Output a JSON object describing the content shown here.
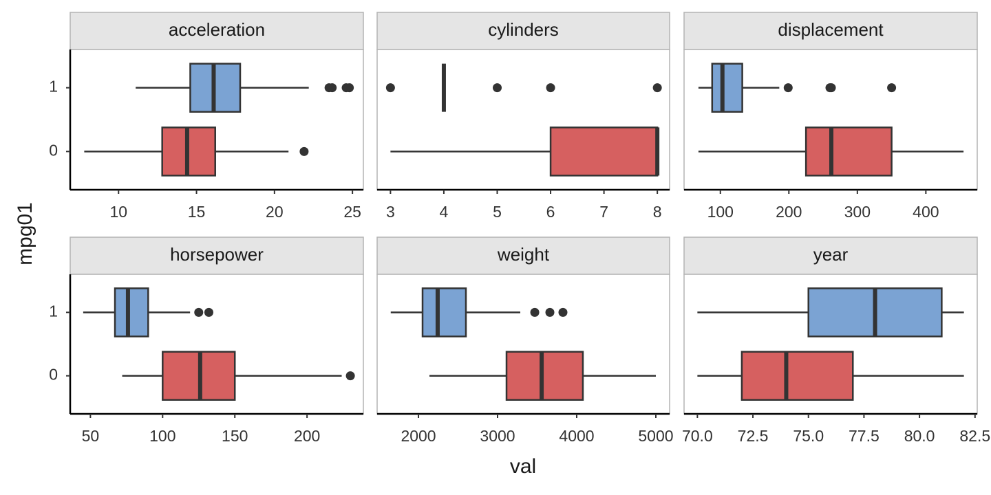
{
  "x_label": "val",
  "y_label": "mpg01",
  "categories": [
    "1",
    "0"
  ],
  "chart_data": [
    {
      "type": "box",
      "title": "acceleration",
      "xlim": [
        6.9,
        25.7
      ],
      "xticks": [
        10,
        15,
        20,
        25
      ],
      "series": [
        {
          "color": "#7ba3d3",
          "min": 11.1,
          "q1": 14.6,
          "median": 16.1,
          "q3": 17.8,
          "max": 22.2,
          "outliers": [
            23.5,
            23.7,
            24.6,
            24.8
          ]
        },
        {
          "color": "#d66060",
          "min": 7.8,
          "q1": 12.8,
          "median": 14.4,
          "q3": 16.2,
          "max": 20.9,
          "outliers": [
            21.9
          ]
        }
      ]
    },
    {
      "type": "box",
      "title": "cylinders",
      "xlim": [
        2.75,
        8.23
      ],
      "xticks": [
        3,
        4,
        5,
        6,
        7,
        8
      ],
      "series": [
        {
          "color": "#7ba3d3",
          "min": 4,
          "q1": 4,
          "median": 4,
          "q3": 4,
          "max": 4,
          "outliers": [
            3,
            5,
            6,
            8
          ]
        },
        {
          "color": "#d66060",
          "min": 3,
          "q1": 6,
          "median": 8,
          "q3": 8,
          "max": 8,
          "outliers": []
        }
      ]
    },
    {
      "type": "box",
      "title": "displacement",
      "xlim": [
        47,
        475
      ],
      "xticks": [
        100,
        200,
        300,
        400
      ],
      "series": [
        {
          "color": "#7ba3d3",
          "min": 68,
          "q1": 88,
          "median": 103,
          "q3": 132,
          "max": 186,
          "outliers": [
            199,
            260,
            262,
            350
          ]
        },
        {
          "color": "#d66060",
          "min": 68,
          "q1": 225,
          "median": 262,
          "q3": 350,
          "max": 455,
          "outliers": []
        }
      ]
    },
    {
      "type": "box",
      "title": "horsepower",
      "xlim": [
        36,
        239
      ],
      "xticks": [
        50,
        100,
        150,
        200
      ],
      "series": [
        {
          "color": "#7ba3d3",
          "min": 45,
          "q1": 67,
          "median": 76,
          "q3": 90,
          "max": 119,
          "outliers": [
            125,
            132
          ]
        },
        {
          "color": "#d66060",
          "min": 72,
          "q1": 100,
          "median": 126,
          "q3": 150,
          "max": 224,
          "outliers": [
            230
          ]
        }
      ]
    },
    {
      "type": "box",
      "title": "weight",
      "xlim": [
        1478,
        5174
      ],
      "xticks": [
        2000,
        3000,
        4000,
        5000
      ],
      "series": [
        {
          "color": "#7ba3d3",
          "min": 1650,
          "q1": 2052,
          "median": 2243,
          "q3": 2600,
          "max": 3287,
          "outliers": [
            3470,
            3661,
            3826
          ]
        },
        {
          "color": "#d66060",
          "min": 2139,
          "q1": 3113,
          "median": 3557,
          "q3": 4078,
          "max": 5000,
          "outliers": []
        }
      ]
    },
    {
      "type": "box",
      "title": "year",
      "xlim": [
        69.4,
        82.6
      ],
      "xticks": [
        {
          "value": 70,
          "label": "70.0"
        },
        72.5,
        {
          "value": 75,
          "label": "75.0"
        },
        77.5,
        {
          "value": 80,
          "label": "80.0"
        },
        82.5
      ],
      "series": [
        {
          "color": "#7ba3d3",
          "min": 70,
          "q1": 75,
          "median": 78,
          "q3": 81,
          "max": 82,
          "outliers": []
        },
        {
          "color": "#d66060",
          "min": 70,
          "q1": 72,
          "median": 74,
          "q3": 77,
          "max": 82,
          "outliers": []
        }
      ]
    }
  ]
}
